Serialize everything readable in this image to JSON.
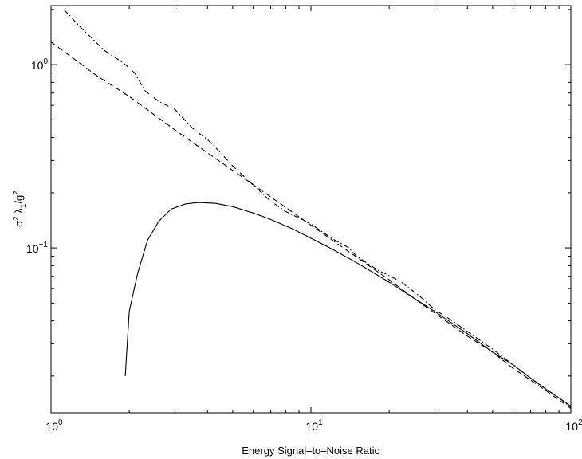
{
  "chart_data": {
    "type": "line",
    "title": "",
    "xlabel": "Energy Signal–to–Noise Ratio",
    "ylabel": {
      "base": "σ",
      "sup1": "2",
      "mid": " λ",
      "sub": "1",
      "tail": "/g",
      "sup2": "2"
    },
    "x_scale": "log",
    "y_scale": "log",
    "xlim": [
      1,
      100
    ],
    "ylim": [
      0.0126,
      2.1
    ],
    "grid": false,
    "legend": "none",
    "x_ticks": [
      {
        "value": 1,
        "base": "10",
        "exp": "0"
      },
      {
        "value": 10,
        "base": "10",
        "exp": "1"
      },
      {
        "value": 100,
        "base": "10",
        "exp": "2"
      }
    ],
    "y_ticks": [
      {
        "value": 0.1,
        "base": "10",
        "exp": "−1"
      },
      {
        "value": 1,
        "base": "10",
        "exp": "0"
      }
    ],
    "series": [
      {
        "style": "solid",
        "x": [
          1.93,
          2.0,
          2.15,
          2.35,
          2.6,
          2.9,
          3.3,
          3.7,
          4.3,
          5.0,
          6.0,
          7.0,
          8.5,
          10,
          12,
          15,
          20,
          25,
          30,
          40,
          50,
          60,
          70,
          80,
          90,
          100
        ],
        "y": [
          0.02,
          0.045,
          0.072,
          0.11,
          0.14,
          0.163,
          0.174,
          0.177,
          0.175,
          0.168,
          0.155,
          0.143,
          0.127,
          0.113,
          0.099,
          0.083,
          0.065,
          0.053,
          0.045,
          0.034,
          0.027,
          0.023,
          0.0195,
          0.017,
          0.0152,
          0.0137
        ]
      },
      {
        "style": "dashed",
        "x": [
          1,
          1.5,
          2,
          3,
          4,
          5,
          7,
          10,
          15,
          20,
          25,
          30,
          40,
          50,
          60,
          70,
          80,
          90,
          100
        ],
        "y": [
          1.33,
          0.87,
          0.67,
          0.44,
          0.33,
          0.265,
          0.19,
          0.133,
          0.089,
          0.067,
          0.053,
          0.044,
          0.033,
          0.027,
          0.022,
          0.019,
          0.0167,
          0.0148,
          0.0133
        ]
      },
      {
        "style": "dashdot",
        "x": [
          1.12,
          1.3,
          1.6,
          1.9,
          2.1,
          2.3,
          2.6,
          3.0,
          3.5,
          4.0,
          4.5,
          5.0,
          6.0,
          7.0,
          8.0,
          10,
          12,
          14,
          15,
          18,
          22,
          26,
          30,
          35,
          40,
          50,
          60,
          70,
          80,
          90,
          100
        ],
        "y": [
          2.0,
          1.6,
          1.2,
          1.02,
          0.9,
          0.72,
          0.63,
          0.57,
          0.45,
          0.39,
          0.33,
          0.28,
          0.22,
          0.18,
          0.158,
          0.135,
          0.113,
          0.1,
          0.09,
          0.076,
          0.066,
          0.055,
          0.046,
          0.04,
          0.035,
          0.028,
          0.023,
          0.0195,
          0.017,
          0.0152,
          0.0135
        ]
      }
    ]
  }
}
